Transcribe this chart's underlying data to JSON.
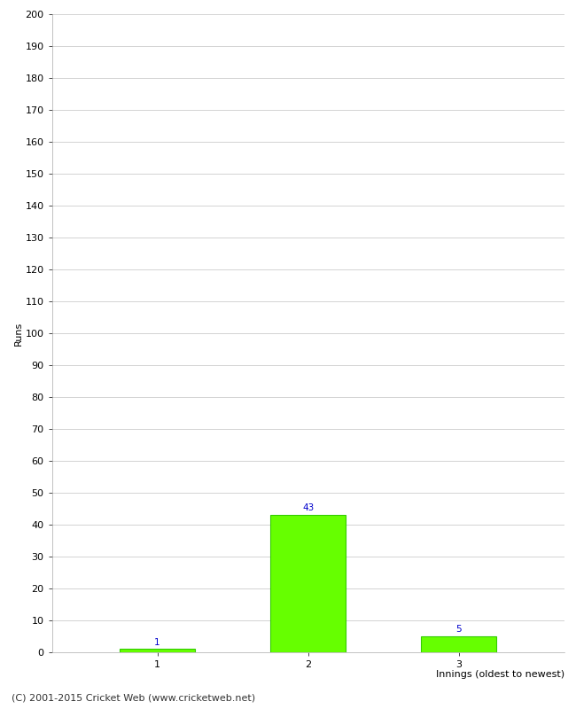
{
  "categories": [
    "1",
    "2",
    "3"
  ],
  "values": [
    1,
    43,
    5
  ],
  "bar_color": "#66ff00",
  "bar_edge_color": "#33cc00",
  "value_labels": [
    "1",
    "43",
    "5"
  ],
  "value_label_color": "#0000cc",
  "ylabel": "Runs",
  "xlabel": "Innings (oldest to newest)",
  "ylim": [
    0,
    200
  ],
  "yticks": [
    0,
    10,
    20,
    30,
    40,
    50,
    60,
    70,
    80,
    90,
    100,
    110,
    120,
    130,
    140,
    150,
    160,
    170,
    180,
    190,
    200
  ],
  "footer": "(C) 2001-2015 Cricket Web (www.cricketweb.net)",
  "background_color": "#ffffff",
  "grid_color": "#cccccc",
  "bar_width": 0.5,
  "value_label_fontsize": 7.5,
  "axis_label_fontsize": 8,
  "tick_fontsize": 8,
  "footer_fontsize": 8
}
